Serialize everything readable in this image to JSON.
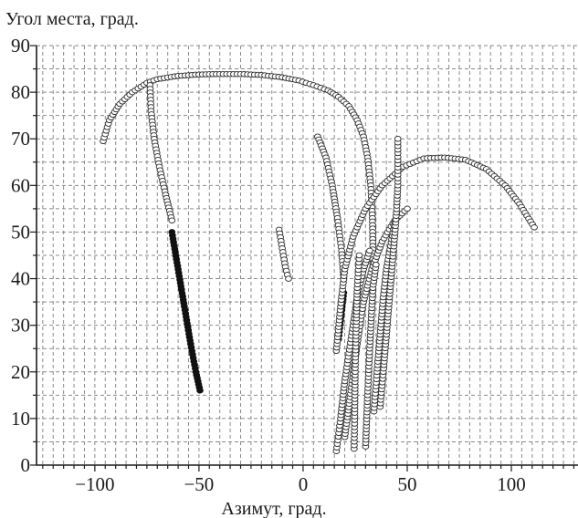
{
  "chart_data": {
    "type": "scatter",
    "title": "",
    "xlabel": "Азимут, град.",
    "ylabel": "Угол места, град.",
    "xlim": [
      -128,
      132
    ],
    "ylim": [
      0,
      90
    ],
    "x_ticks": [
      -100,
      -50,
      0,
      50,
      100
    ],
    "x_tick_labels": [
      "−100",
      "−50",
      "0",
      "50",
      "100"
    ],
    "y_ticks": [
      0,
      10,
      20,
      30,
      40,
      50,
      60,
      70,
      80,
      90
    ],
    "y_tick_labels": [
      "0",
      "10",
      "20",
      "30",
      "40",
      "50",
      "60",
      "70",
      "80",
      "90"
    ],
    "grid": "dashed, every 5 degrees",
    "legend": "none",
    "colors": {
      "marker_edge": "#2a2a2a",
      "marker_face": "#ffffff",
      "filled_marker": "#111111",
      "grid": "#8a8a8a"
    },
    "series": [
      {
        "filled": false,
        "points": [
          [
            -96,
            69.5
          ],
          [
            -93,
            74
          ],
          [
            -88,
            77.5
          ],
          [
            -82,
            80
          ],
          [
            -75,
            82
          ],
          [
            -70,
            82.8
          ],
          [
            -60,
            83.5
          ],
          [
            -50,
            83.8
          ],
          [
            -40,
            83.9
          ],
          [
            -30,
            83.9
          ],
          [
            -20,
            83.7
          ],
          [
            -10,
            83.2
          ],
          [
            -2,
            82.5
          ],
          [
            5,
            81.5
          ],
          [
            12,
            80.4
          ],
          [
            17,
            79
          ],
          [
            22,
            77
          ],
          [
            26,
            74
          ],
          [
            29,
            70.5
          ],
          [
            31,
            66
          ],
          [
            32.5,
            60
          ],
          [
            33.3,
            53
          ],
          [
            33.5,
            47
          ],
          [
            33.5,
            40.5
          ]
        ]
      },
      {
        "filled": false,
        "points": [
          [
            -73.5,
            81.5
          ],
          [
            -73,
            76
          ],
          [
            -71.5,
            70
          ],
          [
            -69,
            64
          ],
          [
            -66,
            58
          ],
          [
            -63,
            52.5
          ]
        ]
      },
      {
        "filled": true,
        "points": [
          [
            -63,
            50
          ],
          [
            -60,
            42
          ],
          [
            -57,
            34
          ],
          [
            -54,
            26
          ],
          [
            -51.5,
            20
          ],
          [
            -49.5,
            16
          ]
        ]
      },
      {
        "filled": false,
        "points": [
          [
            -11.5,
            50.5
          ],
          [
            -10,
            46.5
          ],
          [
            -8.5,
            42.5
          ],
          [
            -7,
            40
          ]
        ]
      },
      {
        "filled": false,
        "points": [
          [
            7,
            70.5
          ],
          [
            11,
            66
          ],
          [
            14,
            60
          ],
          [
            16.5,
            53
          ],
          [
            18.5,
            46
          ],
          [
            19.5,
            40
          ]
        ]
      },
      {
        "filled": true,
        "points": [
          [
            19.5,
            37
          ],
          [
            18,
            31
          ],
          [
            17,
            27
          ]
        ]
      },
      {
        "filled": false,
        "points": [
          [
            16,
            24.5
          ],
          [
            18,
            34
          ],
          [
            20,
            42
          ],
          [
            24,
            49
          ],
          [
            30,
            55
          ],
          [
            38,
            60
          ],
          [
            48,
            64
          ],
          [
            58,
            65.8
          ],
          [
            68,
            66
          ],
          [
            78,
            65.5
          ],
          [
            88,
            63.5
          ],
          [
            97,
            60
          ],
          [
            104,
            56
          ],
          [
            111,
            51
          ]
        ]
      },
      {
        "filled": false,
        "points": [
          [
            16,
            3
          ],
          [
            18,
            10
          ],
          [
            20,
            18
          ],
          [
            23,
            27
          ],
          [
            26,
            36
          ],
          [
            29,
            42
          ],
          [
            32,
            46
          ]
        ]
      },
      {
        "filled": false,
        "points": [
          [
            20,
            6
          ],
          [
            23,
            16
          ],
          [
            26,
            26
          ],
          [
            29,
            35
          ],
          [
            33,
            42
          ],
          [
            38,
            48
          ],
          [
            44,
            52.5
          ],
          [
            50,
            55
          ]
        ]
      },
      {
        "filled": false,
        "points": [
          [
            24.5,
            3.5
          ],
          [
            24.8,
            12
          ],
          [
            25,
            20
          ],
          [
            25.5,
            30
          ],
          [
            26,
            38
          ],
          [
            27,
            45
          ]
        ]
      },
      {
        "filled": false,
        "points": [
          [
            30,
            4
          ],
          [
            31,
            15
          ],
          [
            32,
            25
          ],
          [
            33.5,
            38
          ],
          [
            35,
            43
          ]
        ]
      },
      {
        "filled": false,
        "points": [
          [
            34,
            11.5
          ],
          [
            35.5,
            20
          ],
          [
            37,
            28
          ],
          [
            38.5,
            36
          ],
          [
            40,
            42
          ],
          [
            42,
            47
          ],
          [
            44,
            52
          ]
        ]
      },
      {
        "filled": false,
        "points": [
          [
            37,
            12.5
          ],
          [
            38.5,
            20
          ],
          [
            40,
            28
          ],
          [
            41.5,
            36
          ],
          [
            43,
            44
          ],
          [
            44.5,
            52
          ],
          [
            45.5,
            60
          ],
          [
            45.5,
            70
          ]
        ]
      }
    ]
  }
}
